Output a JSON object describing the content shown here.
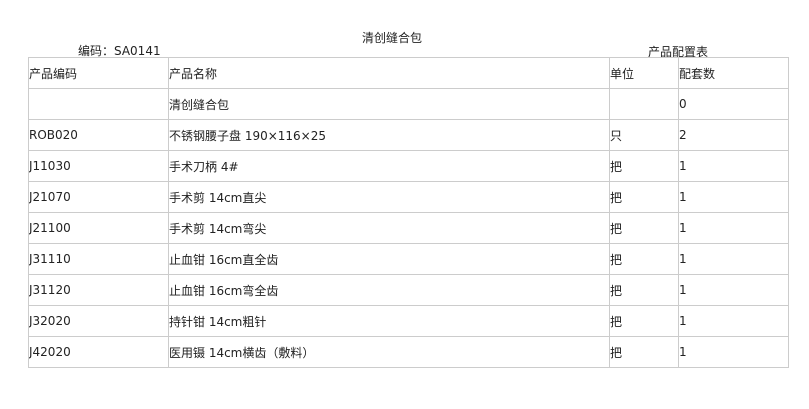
{
  "title": "清创缝合包",
  "code_label": "编码：SA0141",
  "table_caption": "产品配置表",
  "headers": [
    "产品编码",
    "产品名称",
    "单位",
    "配套数"
  ],
  "rows": [
    [
      "",
      "清创缝合包",
      "",
      "0"
    ],
    [
      "ROB020",
      "不锈钢腰子盘 190×116×25",
      "只",
      "2"
    ],
    [
      "J11030",
      "手术刀柄 4#",
      "把",
      "1"
    ],
    [
      "J21070",
      "手术剪 14cm直尖",
      "把",
      "1"
    ],
    [
      "J21100",
      "手术剪 14cm弯尖",
      "把",
      "1"
    ],
    [
      "J31110",
      "止血钳 16cm直全齿",
      "把",
      "1"
    ],
    [
      "J31120",
      "止血钳 16cm弯全齿",
      "把",
      "1"
    ],
    [
      "J32020",
      "持针钳 14cm粗针",
      "把",
      "1"
    ],
    [
      "J42020",
      "医用镊 14cm横齿（敷料）",
      "把",
      "1"
    ]
  ]
}
